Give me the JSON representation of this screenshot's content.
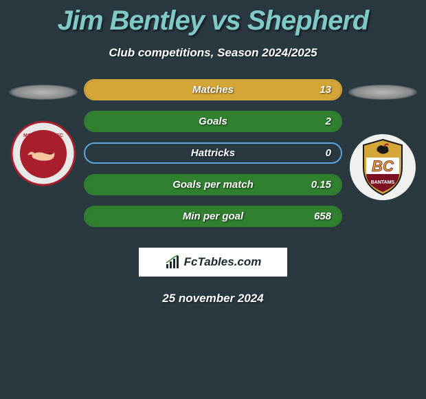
{
  "title": "Jim Bentley vs Shepherd",
  "subtitle": "Club competitions, Season 2024/2025",
  "rows": [
    {
      "label": "Matches",
      "value": "13",
      "fill_pct": 100,
      "border_color": "#d4a537",
      "fill_color": "#d4a537"
    },
    {
      "label": "Goals",
      "value": "2",
      "fill_pct": 100,
      "border_color": "#308030",
      "fill_color": "#308030"
    },
    {
      "label": "Hattricks",
      "value": "0",
      "fill_pct": 0,
      "border_color": "#5aa6e0",
      "fill_color": "#5aa6e0"
    },
    {
      "label": "Goals per match",
      "value": "0.15",
      "fill_pct": 100,
      "border_color": "#308030",
      "fill_color": "#308030"
    },
    {
      "label": "Min per goal",
      "value": "658",
      "fill_pct": 100,
      "border_color": "#308030",
      "fill_color": "#308030"
    }
  ],
  "footer": {
    "brand": "FcTables.com"
  },
  "date": "25 november 2024",
  "left_logo": {
    "outer_bg": "#e8e8e8",
    "inner_bg": "#a81e2d",
    "accent": "#ffffff"
  },
  "right_logo": {
    "outer_bg": "#f0f0ee",
    "band_top": "#d4a537",
    "band_bottom": "#7a1020",
    "text": "BC"
  },
  "colors": {
    "page_bg": "#2a3940",
    "title_color": "#7fc8c8"
  }
}
